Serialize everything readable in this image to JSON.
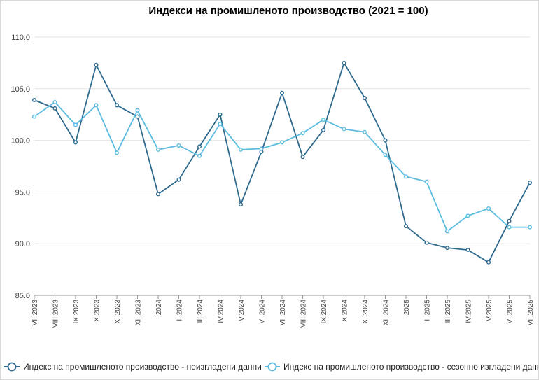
{
  "chart_data": {
    "type": "line",
    "title": "Индекси на промишленото производство (2021 = 100)",
    "xlabel": "",
    "ylabel": "",
    "ylim": [
      85,
      110
    ],
    "yticks": [
      "85.0",
      "90.0",
      "95.0",
      "100.0",
      "105.0",
      "110.0"
    ],
    "categories": [
      "VII.2023",
      "VIII.2023",
      "IX.2023",
      "X.2023",
      "XI.2023",
      "XII.2023",
      "I.2024",
      "II.2024",
      "III.2024",
      "IV.2024",
      "V.2024",
      "VI.2024",
      "VII.2024",
      "VIII.2024",
      "IX.2024",
      "X.2024",
      "XI.2024",
      "XII.2024",
      "I.2025",
      "II.2025",
      "III.2025",
      "IV.2025",
      "V.2025",
      "VI.2025",
      "VII.2025"
    ],
    "grid": "horizontal",
    "legend_position": "bottom",
    "series": [
      {
        "name": "Индекс на промишленото производство - неизгладени данни",
        "color": "#2e6a8e",
        "values": [
          103.9,
          103.1,
          99.8,
          107.3,
          103.4,
          102.3,
          94.8,
          96.2,
          99.4,
          102.5,
          93.8,
          98.9,
          104.6,
          98.4,
          101.0,
          107.5,
          104.1,
          100.0,
          91.7,
          90.1,
          89.6,
          89.4,
          88.2,
          92.2,
          95.9
        ]
      },
      {
        "name": "Индекс на промишленото производство - сезонно изгладени данни",
        "color": "#5bbce0",
        "values": [
          102.3,
          103.7,
          101.5,
          103.4,
          98.8,
          102.9,
          99.1,
          99.5,
          98.5,
          101.6,
          99.1,
          99.2,
          99.8,
          100.7,
          102.0,
          101.1,
          100.8,
          98.6,
          96.5,
          96.0,
          91.2,
          92.7,
          93.4,
          91.6,
          91.6
        ]
      }
    ]
  }
}
